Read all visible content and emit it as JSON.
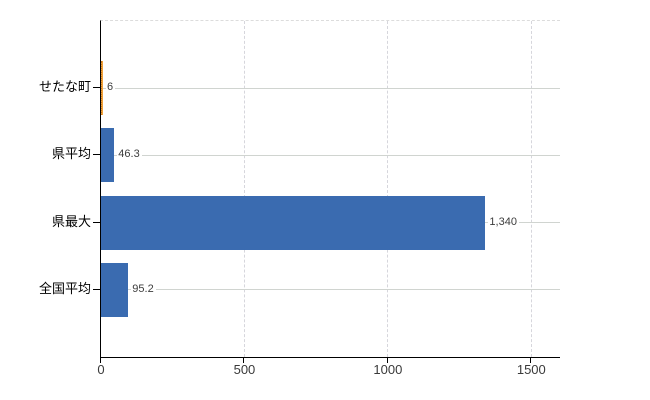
{
  "chart_data": {
    "type": "bar",
    "orientation": "horizontal",
    "title": "",
    "xlabel": "",
    "ylabel": "",
    "categories": [
      "せたな町",
      "県平均",
      "県最大",
      "全国平均"
    ],
    "values": [
      6,
      46.3,
      1340,
      95.2
    ],
    "value_labels": [
      "6",
      "46.3",
      "1,340",
      "95.2"
    ],
    "x_ticks": [
      0,
      500,
      1000,
      1500
    ],
    "x_tick_labels": [
      "0",
      "500",
      "1000",
      "1500"
    ],
    "xlim": [
      0,
      1600
    ],
    "grid": true,
    "legend": false,
    "highlighted_category": "せたな町",
    "colors": {
      "bar": "#3a6bb0",
      "highlight_bar": "#f0a33c",
      "highlight_border": "#c8761e",
      "axis": "#000000",
      "row_line": "#d0d4d0",
      "gridline": "#d6d6dc",
      "category_text": "#000000",
      "value_text": "#3c3c3c",
      "tick_text": "#3a3a3a",
      "background": "#ffffff"
    }
  }
}
